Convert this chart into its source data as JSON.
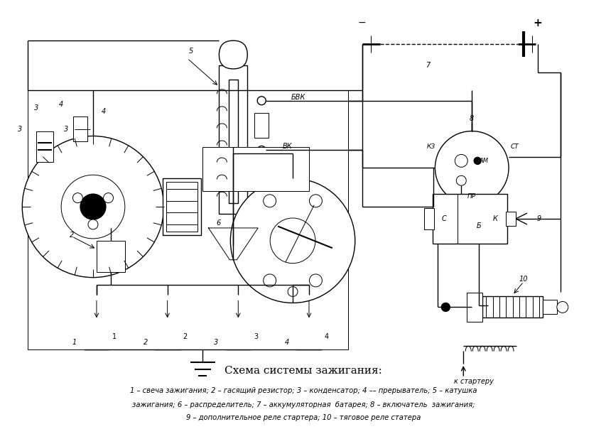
{
  "title": "Схема системы зажигания:",
  "cap1": "1 – свеча зажигания; 2 – гасящий резистор; 3 – конденсатор; 4 –– прерыватель; 5 – катушка",
  "cap2": "зажигания; 6 – распределитель; 7 – аккумуляторная  батарея; 8 – включатель  зажигания;",
  "cap3": "9 – дополнительное реле стартера; 10 – тяговое реле статера",
  "bg": "#ffffff",
  "lc": "#000000"
}
